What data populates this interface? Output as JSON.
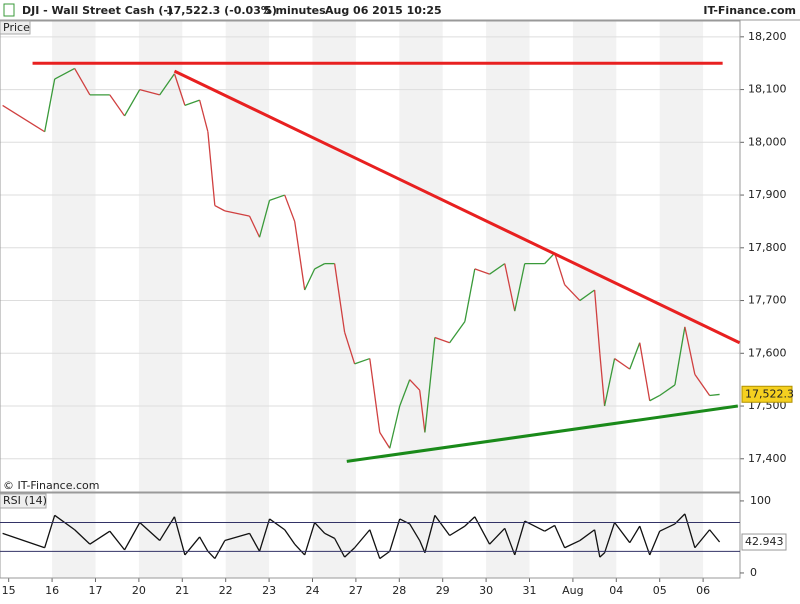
{
  "header": {
    "symbol": "DJI - Wall Street Cash (-)",
    "quote": "17,522.3 (-0.03%)",
    "interval": "5 minutes",
    "datetime": "Aug 06 2015 10:25",
    "brand": "IT-Finance.com"
  },
  "chart_data": [
    {
      "type": "line",
      "title": "Price",
      "source": "© IT-Finance.com",
      "x": [
        -0.14,
        0.83,
        1.06,
        1.52,
        1.87,
        2.33,
        2.67,
        3.02,
        3.48,
        3.82,
        4.06,
        4.4,
        4.59,
        4.75,
        4.98,
        5.55,
        5.78,
        6.01,
        6.36,
        6.59,
        6.82,
        7.05,
        7.28,
        7.51,
        7.74,
        7.97,
        8.32,
        8.55,
        8.78,
        9.01,
        9.24,
        9.47,
        9.59,
        9.82,
        10.16,
        10.51,
        10.74,
        11.08,
        11.43,
        11.66,
        11.89,
        12.35,
        12.58,
        12.81,
        13.16,
        13.5,
        13.62,
        13.73,
        13.96,
        14.31,
        14.54,
        14.77,
        15.0,
        15.35,
        15.58,
        15.81,
        16.15,
        16.38
      ],
      "series": [
        {
          "name": "DJI",
          "color": "#3a9a3a",
          "down_color": "#d04040",
          "values": [
            18070,
            18020,
            18120,
            18140,
            18090,
            18090,
            18050,
            18100,
            18090,
            18130,
            18070,
            18080,
            18020,
            17880,
            17870,
            17860,
            17820,
            17890,
            17900,
            17850,
            17720,
            17760,
            17770,
            17770,
            17640,
            17580,
            17590,
            17450,
            17420,
            17500,
            17550,
            17530,
            17450,
            17630,
            17620,
            17660,
            17760,
            17750,
            17770,
            17680,
            17770,
            17770,
            17790,
            17730,
            17700,
            17720,
            17600,
            17500,
            17590,
            17570,
            17620,
            17510,
            17520,
            17540,
            17650,
            17560,
            17520,
            17522
          ]
        }
      ],
      "trendlines": [
        {
          "color": "#e82020",
          "x": [
            0.55,
            16.45
          ],
          "y": [
            18150,
            18150
          ]
        },
        {
          "color": "#e82020",
          "x": [
            3.82,
            16.84
          ],
          "y": [
            18135,
            17620
          ]
        },
        {
          "color": "#1a8a1a",
          "x": [
            7.79,
            16.8
          ],
          "y": [
            17395,
            17500
          ]
        }
      ],
      "last_price": {
        "value": 17522.3,
        "label": "17,522.3"
      },
      "xlim": [
        -0.2,
        16.85
      ],
      "xticks": [
        {
          "value": 0,
          "label": "15"
        },
        {
          "value": 1,
          "label": "16"
        },
        {
          "value": 2,
          "label": "17"
        },
        {
          "value": 3,
          "label": "20"
        },
        {
          "value": 4,
          "label": "21"
        },
        {
          "value": 5,
          "label": "22"
        },
        {
          "value": 6,
          "label": "23"
        },
        {
          "value": 7,
          "label": "24"
        },
        {
          "value": 8,
          "label": "27"
        },
        {
          "value": 9,
          "label": "28"
        },
        {
          "value": 10,
          "label": "29"
        },
        {
          "value": 11,
          "label": "30"
        },
        {
          "value": 12,
          "label": "31"
        },
        {
          "value": 13,
          "label": "Aug"
        },
        {
          "value": 14,
          "label": "04"
        },
        {
          "value": 15,
          "label": "05"
        },
        {
          "value": 16,
          "label": "06"
        }
      ],
      "ylim": [
        17337,
        18230
      ],
      "yticks": [
        {
          "value": 17400,
          "label": "17,400"
        },
        {
          "value": 17500,
          "label": "17,500"
        },
        {
          "value": 17600,
          "label": "17,600"
        },
        {
          "value": 17700,
          "label": "17,700"
        },
        {
          "value": 17800,
          "label": "17,800"
        },
        {
          "value": 17900,
          "label": "17,900"
        },
        {
          "value": 18000,
          "label": "18,000"
        },
        {
          "value": 18100,
          "label": "18,100"
        },
        {
          "value": 18200,
          "label": "18,200"
        }
      ],
      "grid": true
    },
    {
      "type": "line",
      "title": "RSI (14)",
      "series": [
        {
          "name": "RSI",
          "color": "#111111",
          "values": [
            55,
            35,
            80,
            60,
            40,
            58,
            32,
            70,
            45,
            78,
            25,
            50,
            30,
            20,
            45,
            55,
            30,
            75,
            60,
            40,
            25,
            70,
            55,
            48,
            22,
            35,
            60,
            20,
            30,
            75,
            68,
            45,
            28,
            80,
            52,
            65,
            78,
            40,
            62,
            25,
            72,
            58,
            66,
            35,
            45,
            60,
            22,
            28,
            70,
            42,
            65,
            25,
            58,
            68,
            82,
            35,
            60,
            42.943
          ]
        }
      ],
      "last_value": {
        "value": 42.943,
        "label": "42.943"
      },
      "levels": [
        70,
        30
      ],
      "ylim": [
        -7,
        111
      ],
      "yticks": [
        0,
        100
      ]
    }
  ]
}
